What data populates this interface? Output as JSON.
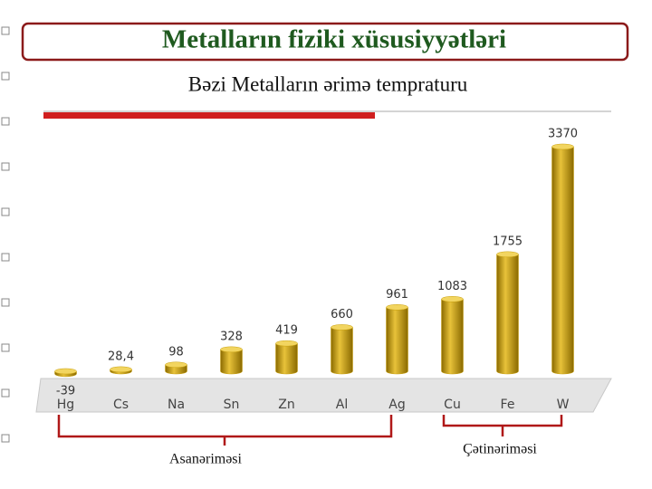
{
  "header": {
    "title": "Metalların fiziki xüsusiyyətləri",
    "subtitle": "Bəzi Metalların ərimə tempraturu"
  },
  "chart_data": {
    "type": "bar",
    "categories": [
      "Hg",
      "Cs",
      "Na",
      "Sn",
      "Zn",
      "Al",
      "Ag",
      "Cu",
      "Fe",
      "W"
    ],
    "values": [
      -39,
      28.4,
      98,
      328,
      419,
      660,
      961,
      1083,
      1755,
      3370
    ],
    "value_labels": [
      "-39",
      "28,4",
      "98",
      "328",
      "419",
      "660",
      "961",
      "1083",
      "1755",
      "3370"
    ],
    "color": "#c9a00c",
    "annotations": [
      "Asanərimәsi",
      "Çətinərimәsi"
    ]
  }
}
